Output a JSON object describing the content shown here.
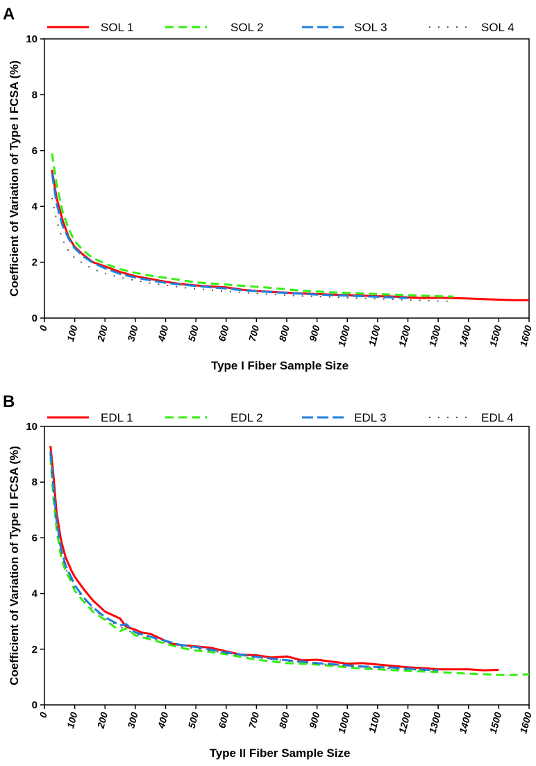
{
  "chart_data": [
    {
      "type": "line",
      "panel_label": "A",
      "xlabel": "Type I Fiber Sample Size",
      "ylabel": "Coefficient of Variation of Type I FCSA (%)",
      "xlim": [
        0,
        1600
      ],
      "ylim": [
        0,
        10
      ],
      "xticks": [
        "0",
        "100",
        "200",
        "300",
        "400",
        "500",
        "600",
        "700",
        "800",
        "900",
        "1000",
        "1100",
        "1200",
        "1300",
        "1400",
        "1500",
        "1600"
      ],
      "yticks": [
        "0",
        "2",
        "4",
        "6",
        "8",
        "10"
      ],
      "grid": false,
      "legend": "top",
      "series": [
        {
          "name": "SOL 1",
          "color": "#ff0000",
          "dash": "solid",
          "x": [
            25,
            40,
            60,
            80,
            100,
            130,
            160,
            200,
            250,
            300,
            350,
            400,
            450,
            500,
            550,
            600,
            650,
            700,
            750,
            800,
            850,
            900,
            950,
            1000,
            1050,
            1100,
            1150,
            1200,
            1250,
            1300,
            1350,
            1400,
            1450,
            1500,
            1550,
            1600
          ],
          "y": [
            5.3,
            4.3,
            3.5,
            2.9,
            2.55,
            2.25,
            2.0,
            1.85,
            1.65,
            1.5,
            1.4,
            1.3,
            1.22,
            1.17,
            1.13,
            1.1,
            1.02,
            0.97,
            0.94,
            0.91,
            0.88,
            0.86,
            0.84,
            0.82,
            0.8,
            0.78,
            0.77,
            0.74,
            0.72,
            0.73,
            0.72,
            0.7,
            0.68,
            0.66,
            0.64,
            0.64
          ]
        },
        {
          "name": "SOL 2",
          "color": "#33ee11",
          "dash": "dashed",
          "x": [
            25,
            40,
            60,
            80,
            100,
            130,
            160,
            200,
            250,
            300,
            350,
            400,
            450,
            500,
            550,
            600,
            650,
            700,
            750,
            800,
            850,
            900,
            950,
            1000,
            1050,
            1100,
            1150,
            1200,
            1250,
            1300,
            1350
          ],
          "y": [
            5.9,
            4.8,
            3.8,
            3.2,
            2.75,
            2.4,
            2.15,
            1.95,
            1.75,
            1.62,
            1.52,
            1.44,
            1.36,
            1.28,
            1.24,
            1.2,
            1.16,
            1.12,
            1.08,
            1.03,
            0.98,
            0.95,
            0.92,
            0.9,
            0.88,
            0.86,
            0.84,
            0.82,
            0.8,
            0.78,
            0.77
          ]
        },
        {
          "name": "SOL 3",
          "color": "#1e7fe0",
          "dash": "longdash",
          "x": [
            25,
            40,
            60,
            80,
            100,
            130,
            160,
            200,
            250,
            300,
            350,
            400,
            450,
            500,
            550,
            600,
            650,
            700,
            750,
            800,
            850,
            900,
            950,
            1000,
            1050,
            1100,
            1150,
            1200
          ],
          "y": [
            5.2,
            4.1,
            3.3,
            2.85,
            2.5,
            2.2,
            1.98,
            1.78,
            1.58,
            1.45,
            1.35,
            1.26,
            1.2,
            1.15,
            1.1,
            1.06,
            1.0,
            0.96,
            0.93,
            0.9,
            0.87,
            0.84,
            0.82,
            0.8,
            0.78,
            0.76,
            0.74,
            0.72
          ]
        },
        {
          "name": "SOL 4",
          "color": "#555555",
          "dash": "dotted",
          "x": [
            25,
            40,
            60,
            80,
            100,
            130,
            160,
            200,
            250,
            300,
            350,
            400,
            450,
            500,
            550,
            600,
            650,
            700,
            750,
            800,
            850,
            900,
            950,
            1000,
            1050,
            1100,
            1150,
            1200,
            1250,
            1300,
            1350
          ],
          "y": [
            4.3,
            3.5,
            2.8,
            2.4,
            2.15,
            1.95,
            1.75,
            1.6,
            1.45,
            1.35,
            1.25,
            1.18,
            1.1,
            1.05,
            1.0,
            0.96,
            0.92,
            0.88,
            0.85,
            0.82,
            0.79,
            0.77,
            0.75,
            0.73,
            0.71,
            0.69,
            0.67,
            0.65,
            0.63,
            0.61,
            0.6
          ]
        }
      ]
    },
    {
      "type": "line",
      "panel_label": "B",
      "xlabel": "Type II Fiber Sample Size",
      "ylabel": "Coefficient of Variation of Type II FCSA (%)",
      "xlim": [
        0,
        1600
      ],
      "ylim": [
        0,
        10
      ],
      "xticks": [
        "0",
        "100",
        "200",
        "300",
        "400",
        "500",
        "600",
        "700",
        "800",
        "900",
        "1000",
        "1100",
        "1200",
        "1300",
        "1400",
        "1500",
        "1600"
      ],
      "yticks": [
        "0",
        "2",
        "4",
        "6",
        "8",
        "10"
      ],
      "grid": false,
      "legend": "top",
      "series": [
        {
          "name": "EDL 1",
          "color": "#ff0000",
          "dash": "solid",
          "x": [
            20,
            30,
            40,
            55,
            70,
            90,
            100,
            130,
            160,
            200,
            250,
            270,
            300,
            320,
            350,
            380,
            420,
            450,
            500,
            550,
            600,
            650,
            700,
            750,
            800,
            850,
            900,
            950,
            1000,
            1050,
            1100,
            1150,
            1200,
            1250,
            1300,
            1350,
            1400,
            1450,
            1500
          ],
          "y": [
            9.3,
            8.2,
            6.9,
            5.9,
            5.3,
            4.8,
            4.6,
            4.15,
            3.75,
            3.35,
            3.1,
            2.8,
            2.7,
            2.6,
            2.55,
            2.4,
            2.2,
            2.15,
            2.1,
            2.05,
            1.92,
            1.8,
            1.78,
            1.7,
            1.74,
            1.6,
            1.62,
            1.55,
            1.48,
            1.5,
            1.45,
            1.4,
            1.35,
            1.32,
            1.28,
            1.28,
            1.28,
            1.24,
            1.26
          ]
        },
        {
          "name": "EDL 2",
          "color": "#33ee11",
          "dash": "dashed",
          "x": [
            20,
            30,
            40,
            55,
            70,
            90,
            100,
            130,
            160,
            200,
            250,
            270,
            300,
            350,
            400,
            450,
            500,
            550,
            600,
            650,
            700,
            750,
            800,
            850,
            900,
            950,
            1000,
            1050,
            1100,
            1150,
            1200,
            1250,
            1300,
            1350,
            1400,
            1450,
            1500,
            1550,
            1600
          ],
          "y": [
            8.9,
            7.4,
            6.3,
            5.3,
            4.8,
            4.4,
            4.1,
            3.7,
            3.35,
            3.05,
            2.65,
            2.75,
            2.5,
            2.35,
            2.2,
            2.05,
            1.95,
            1.9,
            1.82,
            1.72,
            1.62,
            1.56,
            1.5,
            1.48,
            1.45,
            1.4,
            1.35,
            1.3,
            1.28,
            1.25,
            1.22,
            1.2,
            1.18,
            1.15,
            1.12,
            1.1,
            1.08,
            1.08,
            1.1
          ]
        },
        {
          "name": "EDL 3",
          "color": "#1e7fe0",
          "dash": "longdash",
          "x": [
            20,
            30,
            40,
            55,
            70,
            90,
            100,
            130,
            160,
            200,
            250,
            270,
            300,
            350,
            400,
            450,
            500,
            550,
            600,
            650,
            700,
            750,
            800,
            850,
            900,
            950,
            1000,
            1050,
            1100,
            1150,
            1200,
            1250,
            1300
          ],
          "y": [
            9.1,
            7.8,
            6.6,
            5.6,
            5.0,
            4.55,
            4.3,
            3.85,
            3.5,
            3.15,
            2.85,
            2.9,
            2.6,
            2.45,
            2.3,
            2.15,
            2.08,
            1.98,
            1.88,
            1.8,
            1.72,
            1.66,
            1.6,
            1.55,
            1.5,
            1.46,
            1.42,
            1.38,
            1.36,
            1.34,
            1.3,
            1.27,
            1.25
          ]
        },
        {
          "name": "EDL 4",
          "color": "#555555",
          "dash": "dotted",
          "x": [
            20,
            30,
            40,
            55,
            70,
            90,
            100,
            130,
            160,
            200,
            250,
            270,
            300,
            350,
            400,
            450,
            500,
            550,
            600,
            650,
            700,
            750,
            800,
            850,
            900,
            950,
            1000,
            1050,
            1100,
            1150,
            1200,
            1250,
            1300
          ],
          "y": [
            9.0,
            7.6,
            6.5,
            5.5,
            4.9,
            4.45,
            4.2,
            3.8,
            3.45,
            3.1,
            2.8,
            2.7,
            2.55,
            2.4,
            2.25,
            2.1,
            2.02,
            1.95,
            1.85,
            1.78,
            1.7,
            1.64,
            1.58,
            1.53,
            1.48,
            1.44,
            1.4,
            1.36,
            1.33,
            1.3,
            1.27,
            1.25,
            1.22
          ]
        }
      ]
    }
  ]
}
